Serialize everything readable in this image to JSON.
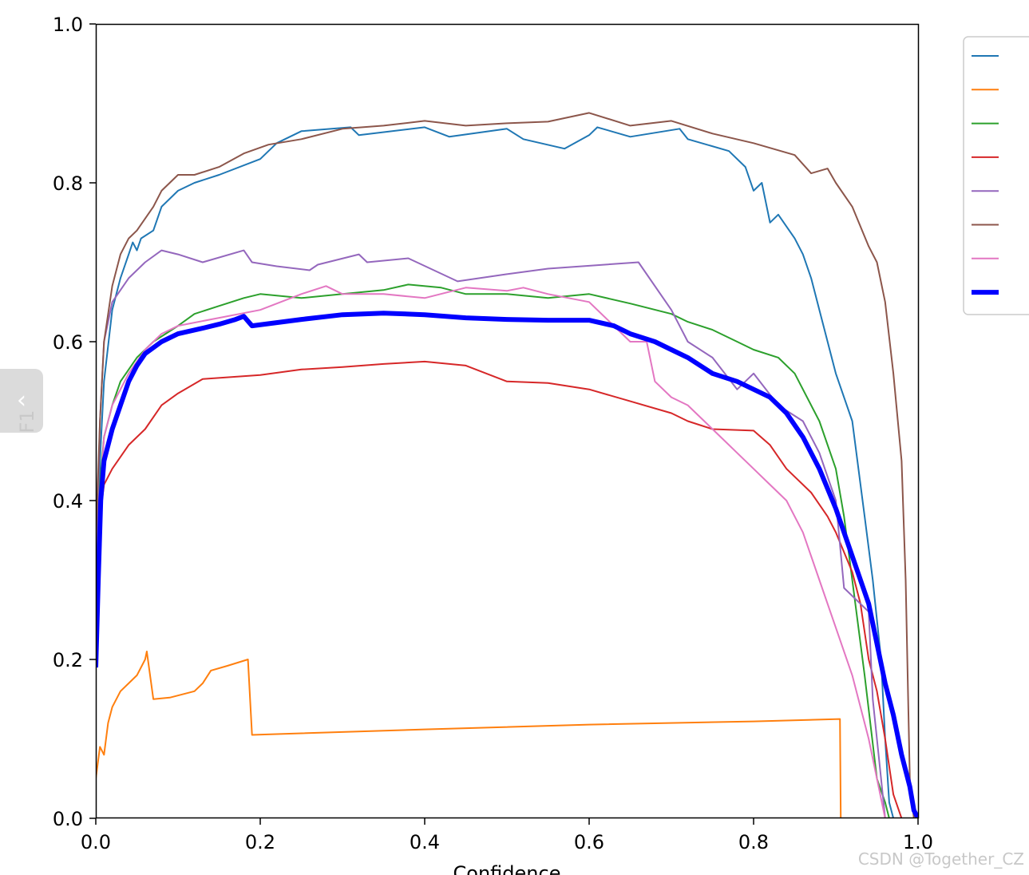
{
  "watermark": "CSDN @Together_CZ",
  "ui": {
    "collapse_glyph": "‹"
  },
  "chart_data": {
    "type": "line",
    "xlabel": "Confidence",
    "ylabel": "F1",
    "xlim": [
      0,
      1
    ],
    "ylim": [
      0,
      1
    ],
    "xticks": [
      "0.0",
      "0.2",
      "0.4",
      "0.6",
      "0.8",
      "1.0"
    ],
    "yticks": [
      "0.0",
      "0.2",
      "0.4",
      "0.6",
      "0.8",
      "1.0"
    ],
    "grid": false,
    "legend": {
      "placement": "right",
      "entry_labels_visible": false
    },
    "series": [
      {
        "color": "#1f77b4",
        "width": 2,
        "points": [
          [
            0,
            0.2
          ],
          [
            0.005,
            0.45
          ],
          [
            0.01,
            0.55
          ],
          [
            0.02,
            0.64
          ],
          [
            0.03,
            0.68
          ],
          [
            0.04,
            0.71
          ],
          [
            0.045,
            0.725
          ],
          [
            0.05,
            0.715
          ],
          [
            0.055,
            0.73
          ],
          [
            0.07,
            0.74
          ],
          [
            0.08,
            0.77
          ],
          [
            0.1,
            0.79
          ],
          [
            0.12,
            0.8
          ],
          [
            0.15,
            0.81
          ],
          [
            0.2,
            0.83
          ],
          [
            0.22,
            0.85
          ],
          [
            0.25,
            0.865
          ],
          [
            0.31,
            0.87
          ],
          [
            0.32,
            0.86
          ],
          [
            0.4,
            0.87
          ],
          [
            0.43,
            0.858
          ],
          [
            0.5,
            0.868
          ],
          [
            0.52,
            0.855
          ],
          [
            0.57,
            0.843
          ],
          [
            0.6,
            0.86
          ],
          [
            0.61,
            0.87
          ],
          [
            0.65,
            0.858
          ],
          [
            0.71,
            0.868
          ],
          [
            0.72,
            0.855
          ],
          [
            0.77,
            0.84
          ],
          [
            0.79,
            0.82
          ],
          [
            0.8,
            0.79
          ],
          [
            0.81,
            0.8
          ],
          [
            0.82,
            0.75
          ],
          [
            0.83,
            0.76
          ],
          [
            0.85,
            0.73
          ],
          [
            0.86,
            0.71
          ],
          [
            0.87,
            0.68
          ],
          [
            0.88,
            0.64
          ],
          [
            0.9,
            0.56
          ],
          [
            0.92,
            0.5
          ],
          [
            0.935,
            0.38
          ],
          [
            0.945,
            0.3
          ],
          [
            0.955,
            0.2
          ],
          [
            0.96,
            0.1
          ],
          [
            0.965,
            0.02
          ],
          [
            0.97,
            0
          ]
        ]
      },
      {
        "color": "#ff7f0e",
        "width": 2,
        "points": [
          [
            0,
            0.05
          ],
          [
            0.005,
            0.09
          ],
          [
            0.01,
            0.08
          ],
          [
            0.015,
            0.12
          ],
          [
            0.02,
            0.14
          ],
          [
            0.03,
            0.16
          ],
          [
            0.04,
            0.17
          ],
          [
            0.05,
            0.18
          ],
          [
            0.06,
            0.2
          ],
          [
            0.062,
            0.21
          ],
          [
            0.07,
            0.15
          ],
          [
            0.09,
            0.152
          ],
          [
            0.12,
            0.16
          ],
          [
            0.13,
            0.17
          ],
          [
            0.14,
            0.186
          ],
          [
            0.16,
            0.192
          ],
          [
            0.185,
            0.2
          ],
          [
            0.19,
            0.105
          ],
          [
            0.4,
            0.112
          ],
          [
            0.6,
            0.118
          ],
          [
            0.8,
            0.122
          ],
          [
            0.905,
            0.125
          ],
          [
            0.906,
            0
          ],
          [
            1,
            0
          ]
        ]
      },
      {
        "color": "#2ca02c",
        "width": 2,
        "points": [
          [
            0,
            0.25
          ],
          [
            0.005,
            0.42
          ],
          [
            0.01,
            0.48
          ],
          [
            0.02,
            0.52
          ],
          [
            0.03,
            0.55
          ],
          [
            0.05,
            0.58
          ],
          [
            0.07,
            0.6
          ],
          [
            0.1,
            0.62
          ],
          [
            0.12,
            0.635
          ],
          [
            0.15,
            0.645
          ],
          [
            0.18,
            0.655
          ],
          [
            0.2,
            0.66
          ],
          [
            0.25,
            0.655
          ],
          [
            0.3,
            0.66
          ],
          [
            0.35,
            0.665
          ],
          [
            0.38,
            0.672
          ],
          [
            0.42,
            0.668
          ],
          [
            0.45,
            0.66
          ],
          [
            0.5,
            0.66
          ],
          [
            0.55,
            0.655
          ],
          [
            0.6,
            0.66
          ],
          [
            0.65,
            0.648
          ],
          [
            0.7,
            0.635
          ],
          [
            0.72,
            0.625
          ],
          [
            0.75,
            0.615
          ],
          [
            0.78,
            0.6
          ],
          [
            0.8,
            0.59
          ],
          [
            0.83,
            0.58
          ],
          [
            0.85,
            0.56
          ],
          [
            0.88,
            0.5
          ],
          [
            0.9,
            0.44
          ],
          [
            0.91,
            0.38
          ],
          [
            0.92,
            0.3
          ],
          [
            0.935,
            0.18
          ],
          [
            0.95,
            0.05
          ],
          [
            0.96,
            0.02
          ],
          [
            0.965,
            0
          ]
        ]
      },
      {
        "color": "#d62728",
        "width": 2,
        "points": [
          [
            0,
            0.25
          ],
          [
            0.005,
            0.38
          ],
          [
            0.01,
            0.42
          ],
          [
            0.02,
            0.44
          ],
          [
            0.04,
            0.47
          ],
          [
            0.06,
            0.49
          ],
          [
            0.08,
            0.52
          ],
          [
            0.1,
            0.535
          ],
          [
            0.13,
            0.553
          ],
          [
            0.2,
            0.558
          ],
          [
            0.25,
            0.565
          ],
          [
            0.3,
            0.568
          ],
          [
            0.35,
            0.572
          ],
          [
            0.4,
            0.575
          ],
          [
            0.45,
            0.57
          ],
          [
            0.5,
            0.55
          ],
          [
            0.55,
            0.548
          ],
          [
            0.6,
            0.54
          ],
          [
            0.65,
            0.525
          ],
          [
            0.7,
            0.51
          ],
          [
            0.72,
            0.5
          ],
          [
            0.75,
            0.49
          ],
          [
            0.8,
            0.488
          ],
          [
            0.82,
            0.47
          ],
          [
            0.84,
            0.44
          ],
          [
            0.87,
            0.41
          ],
          [
            0.89,
            0.38
          ],
          [
            0.9,
            0.36
          ],
          [
            0.92,
            0.31
          ],
          [
            0.93,
            0.27
          ],
          [
            0.94,
            0.2
          ],
          [
            0.95,
            0.16
          ],
          [
            0.96,
            0.1
          ],
          [
            0.97,
            0.03
          ],
          [
            0.98,
            0
          ]
        ]
      },
      {
        "color": "#9467bd",
        "width": 2,
        "points": [
          [
            0,
            0.3
          ],
          [
            0.005,
            0.5
          ],
          [
            0.01,
            0.6
          ],
          [
            0.02,
            0.65
          ],
          [
            0.04,
            0.68
          ],
          [
            0.06,
            0.7
          ],
          [
            0.08,
            0.715
          ],
          [
            0.1,
            0.71
          ],
          [
            0.13,
            0.7
          ],
          [
            0.18,
            0.715
          ],
          [
            0.19,
            0.7
          ],
          [
            0.22,
            0.695
          ],
          [
            0.26,
            0.69
          ],
          [
            0.27,
            0.697
          ],
          [
            0.32,
            0.71
          ],
          [
            0.33,
            0.7
          ],
          [
            0.38,
            0.705
          ],
          [
            0.44,
            0.676
          ],
          [
            0.5,
            0.685
          ],
          [
            0.55,
            0.692
          ],
          [
            0.66,
            0.7
          ],
          [
            0.7,
            0.64
          ],
          [
            0.71,
            0.62
          ],
          [
            0.72,
            0.6
          ],
          [
            0.75,
            0.58
          ],
          [
            0.78,
            0.54
          ],
          [
            0.8,
            0.56
          ],
          [
            0.83,
            0.52
          ],
          [
            0.86,
            0.5
          ],
          [
            0.88,
            0.46
          ],
          [
            0.9,
            0.4
          ],
          [
            0.91,
            0.29
          ],
          [
            0.94,
            0.26
          ],
          [
            0.945,
            0.15
          ],
          [
            0.955,
            0.05
          ],
          [
            0.96,
            0
          ]
        ]
      },
      {
        "color": "#8c564b",
        "width": 2,
        "points": [
          [
            0,
            0.35
          ],
          [
            0.005,
            0.5
          ],
          [
            0.01,
            0.6
          ],
          [
            0.02,
            0.67
          ],
          [
            0.03,
            0.71
          ],
          [
            0.04,
            0.73
          ],
          [
            0.05,
            0.74
          ],
          [
            0.06,
            0.755
          ],
          [
            0.07,
            0.77
          ],
          [
            0.08,
            0.79
          ],
          [
            0.1,
            0.81
          ],
          [
            0.12,
            0.81
          ],
          [
            0.15,
            0.82
          ],
          [
            0.18,
            0.837
          ],
          [
            0.21,
            0.848
          ],
          [
            0.25,
            0.855
          ],
          [
            0.3,
            0.868
          ],
          [
            0.35,
            0.872
          ],
          [
            0.4,
            0.878
          ],
          [
            0.45,
            0.872
          ],
          [
            0.5,
            0.875
          ],
          [
            0.55,
            0.877
          ],
          [
            0.6,
            0.888
          ],
          [
            0.65,
            0.872
          ],
          [
            0.7,
            0.878
          ],
          [
            0.75,
            0.862
          ],
          [
            0.8,
            0.85
          ],
          [
            0.85,
            0.835
          ],
          [
            0.87,
            0.812
          ],
          [
            0.89,
            0.818
          ],
          [
            0.9,
            0.8
          ],
          [
            0.92,
            0.77
          ],
          [
            0.94,
            0.72
          ],
          [
            0.95,
            0.7
          ],
          [
            0.96,
            0.65
          ],
          [
            0.97,
            0.56
          ],
          [
            0.98,
            0.45
          ],
          [
            0.985,
            0.3
          ],
          [
            0.99,
            0.05
          ],
          [
            0.995,
            0
          ]
        ]
      },
      {
        "color": "#e377c2",
        "width": 2,
        "points": [
          [
            0,
            0.22
          ],
          [
            0.005,
            0.4
          ],
          [
            0.01,
            0.48
          ],
          [
            0.02,
            0.52
          ],
          [
            0.04,
            0.56
          ],
          [
            0.06,
            0.59
          ],
          [
            0.08,
            0.61
          ],
          [
            0.1,
            0.62
          ],
          [
            0.15,
            0.63
          ],
          [
            0.2,
            0.64
          ],
          [
            0.25,
            0.66
          ],
          [
            0.28,
            0.67
          ],
          [
            0.3,
            0.66
          ],
          [
            0.35,
            0.66
          ],
          [
            0.4,
            0.655
          ],
          [
            0.45,
            0.668
          ],
          [
            0.5,
            0.664
          ],
          [
            0.52,
            0.668
          ],
          [
            0.55,
            0.66
          ],
          [
            0.6,
            0.65
          ],
          [
            0.63,
            0.62
          ],
          [
            0.65,
            0.6
          ],
          [
            0.67,
            0.6
          ],
          [
            0.68,
            0.55
          ],
          [
            0.7,
            0.53
          ],
          [
            0.72,
            0.52
          ],
          [
            0.74,
            0.5
          ],
          [
            0.76,
            0.48
          ],
          [
            0.78,
            0.46
          ],
          [
            0.8,
            0.44
          ],
          [
            0.82,
            0.42
          ],
          [
            0.84,
            0.4
          ],
          [
            0.86,
            0.36
          ],
          [
            0.88,
            0.3
          ],
          [
            0.9,
            0.24
          ],
          [
            0.92,
            0.18
          ],
          [
            0.94,
            0.1
          ],
          [
            0.95,
            0.05
          ],
          [
            0.96,
            0
          ]
        ]
      },
      {
        "color": "#0000ff",
        "width": 6,
        "points": [
          [
            0,
            0.19
          ],
          [
            0.003,
            0.3
          ],
          [
            0.006,
            0.4
          ],
          [
            0.01,
            0.45
          ],
          [
            0.02,
            0.49
          ],
          [
            0.03,
            0.52
          ],
          [
            0.04,
            0.55
          ],
          [
            0.05,
            0.57
          ],
          [
            0.06,
            0.585
          ],
          [
            0.08,
            0.6
          ],
          [
            0.1,
            0.61
          ],
          [
            0.13,
            0.617
          ],
          [
            0.15,
            0.622
          ],
          [
            0.17,
            0.628
          ],
          [
            0.18,
            0.632
          ],
          [
            0.19,
            0.62
          ],
          [
            0.25,
            0.628
          ],
          [
            0.3,
            0.634
          ],
          [
            0.35,
            0.636
          ],
          [
            0.4,
            0.634
          ],
          [
            0.45,
            0.63
          ],
          [
            0.5,
            0.628
          ],
          [
            0.55,
            0.627
          ],
          [
            0.6,
            0.627
          ],
          [
            0.63,
            0.62
          ],
          [
            0.65,
            0.61
          ],
          [
            0.68,
            0.6
          ],
          [
            0.7,
            0.59
          ],
          [
            0.72,
            0.58
          ],
          [
            0.75,
            0.56
          ],
          [
            0.78,
            0.55
          ],
          [
            0.8,
            0.54
          ],
          [
            0.82,
            0.53
          ],
          [
            0.84,
            0.51
          ],
          [
            0.86,
            0.48
          ],
          [
            0.88,
            0.44
          ],
          [
            0.9,
            0.39
          ],
          [
            0.92,
            0.33
          ],
          [
            0.94,
            0.27
          ],
          [
            0.95,
            0.22
          ],
          [
            0.96,
            0.17
          ],
          [
            0.97,
            0.13
          ],
          [
            0.98,
            0.08
          ],
          [
            0.99,
            0.04
          ],
          [
            0.995,
            0.01
          ],
          [
            1,
            0
          ]
        ]
      }
    ]
  }
}
